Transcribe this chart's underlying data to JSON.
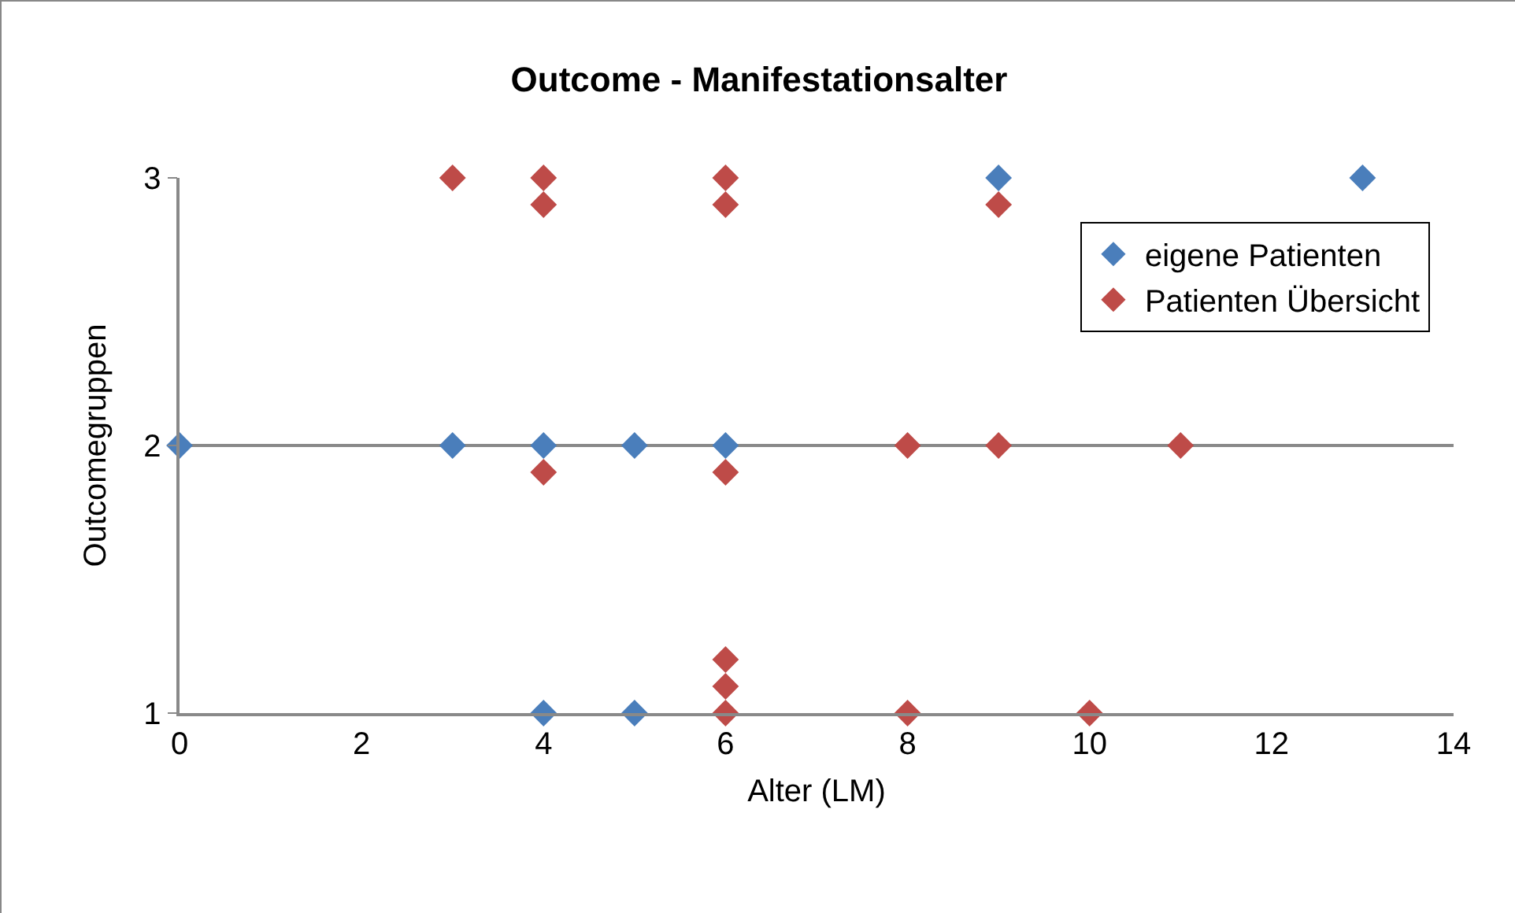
{
  "chart_data": {
    "type": "scatter",
    "title": "Outcome - Manifestationsalter",
    "xlabel": "Alter (LM)",
    "ylabel": "Outcomegruppen",
    "xlim": [
      0,
      14
    ],
    "xticks": [
      0,
      2,
      4,
      6,
      8,
      10,
      12,
      14
    ],
    "ylim": [
      1,
      3
    ],
    "yticks": [
      1,
      2,
      3
    ],
    "grid": "y",
    "legend": "right",
    "marker": "diamond",
    "series": [
      {
        "name": "eigene Patienten",
        "color": "#4a7ebb",
        "x": [
          0,
          3,
          4,
          5,
          6,
          4,
          5,
          9,
          13
        ],
        "values": [
          2,
          2,
          2,
          2,
          2,
          1,
          1,
          3,
          3
        ]
      },
      {
        "name": "Patienten Übersicht",
        "color": "#be4b48",
        "x": [
          3,
          4,
          4,
          6,
          6,
          9,
          8,
          9,
          11,
          4,
          6,
          6,
          6,
          6,
          8,
          10
        ],
        "values": [
          3,
          3,
          2.9,
          3,
          2.9,
          2.9,
          2,
          2,
          2,
          1.9,
          1.9,
          1.2,
          1.1,
          1,
          1,
          1
        ]
      }
    ]
  }
}
